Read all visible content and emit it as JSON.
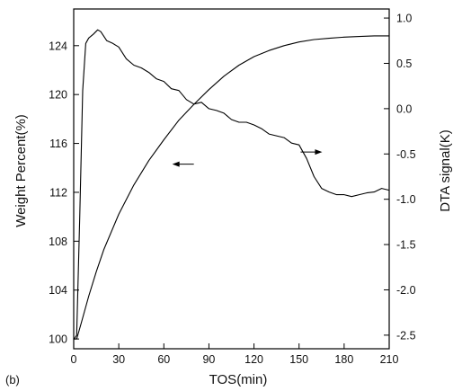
{
  "chart_data": {
    "type": "line",
    "panel_label": "(b)",
    "xlabel": "TOS(min)",
    "ylabel_left": "Weight Percent(%)",
    "ylabel_right": "DTA signal(K)",
    "xlim": [
      0,
      210
    ],
    "ylim_left": [
      99.2,
      127
    ],
    "ylim_right": [
      -2.65,
      1.1
    ],
    "x_ticks": [
      0,
      30,
      60,
      90,
      120,
      150,
      180,
      210
    ],
    "y_left_ticks": [
      100,
      104,
      108,
      112,
      116,
      120,
      124
    ],
    "y_right_ticks": [
      -2.5,
      -2.0,
      -1.5,
      -1.0,
      -0.5,
      0.0,
      0.5,
      1.0
    ],
    "x_tick_labels": [
      "0",
      "30",
      "60",
      "90",
      "120",
      "150",
      "180",
      "210"
    ],
    "y_left_tick_labels": [
      "100",
      "104",
      "108",
      "112",
      "116",
      "120",
      "124"
    ],
    "y_right_tick_labels": [
      "-2.5",
      "-2.0",
      "-1.5",
      "-1.0",
      "-0.5",
      "0.0",
      "0.5",
      "1.0"
    ],
    "series": [
      {
        "axis": "left",
        "x": [
          0,
          2,
          5,
          10,
          15,
          20,
          30,
          40,
          50,
          60,
          70,
          80,
          90,
          100,
          110,
          120,
          130,
          140,
          150,
          160,
          170,
          180,
          190,
          200,
          210
        ],
        "y": [
          100.0,
          100.0,
          101.3,
          103.5,
          105.5,
          107.3,
          110.2,
          112.6,
          114.6,
          116.3,
          117.9,
          119.2,
          120.4,
          121.5,
          122.4,
          123.1,
          123.6,
          124.0,
          124.3,
          124.5,
          124.6,
          124.7,
          124.75,
          124.8,
          124.8
        ]
      },
      {
        "axis": "right",
        "x": [
          0,
          2,
          4,
          6,
          8,
          10,
          13,
          16,
          18,
          22,
          26,
          30,
          35,
          40,
          45,
          50,
          55,
          60,
          65,
          70,
          75,
          80,
          85,
          90,
          95,
          100,
          105,
          110,
          115,
          120,
          125,
          130,
          135,
          140,
          145,
          150,
          155,
          160,
          165,
          170,
          175,
          180,
          185,
          190,
          195,
          200,
          205,
          210
        ],
        "y": [
          -2.55,
          -2.5,
          -1.2,
          0.2,
          0.72,
          0.78,
          0.82,
          0.87,
          0.85,
          0.75,
          0.72,
          0.68,
          0.55,
          0.48,
          0.45,
          0.4,
          0.33,
          0.3,
          0.22,
          0.2,
          0.1,
          0.05,
          0.07,
          0.0,
          -0.02,
          -0.05,
          -0.12,
          -0.15,
          -0.15,
          -0.18,
          -0.22,
          -0.28,
          -0.3,
          -0.32,
          -0.38,
          -0.4,
          -0.55,
          -0.75,
          -0.88,
          -0.92,
          -0.95,
          -0.95,
          -0.97,
          -0.95,
          -0.93,
          -0.92,
          -0.88,
          -0.9
        ]
      }
    ],
    "annotations": [
      {
        "type": "arrow",
        "direction": "left",
        "at": {
          "x": 68,
          "y_left": 114.3
        },
        "refers_to": "left axis"
      },
      {
        "type": "arrow",
        "direction": "right",
        "at": {
          "x": 163,
          "y_left": 115.3
        },
        "refers_to": "right axis"
      }
    ],
    "grid": false,
    "colors": {
      "line": "#000000",
      "text": "#111111"
    }
  }
}
